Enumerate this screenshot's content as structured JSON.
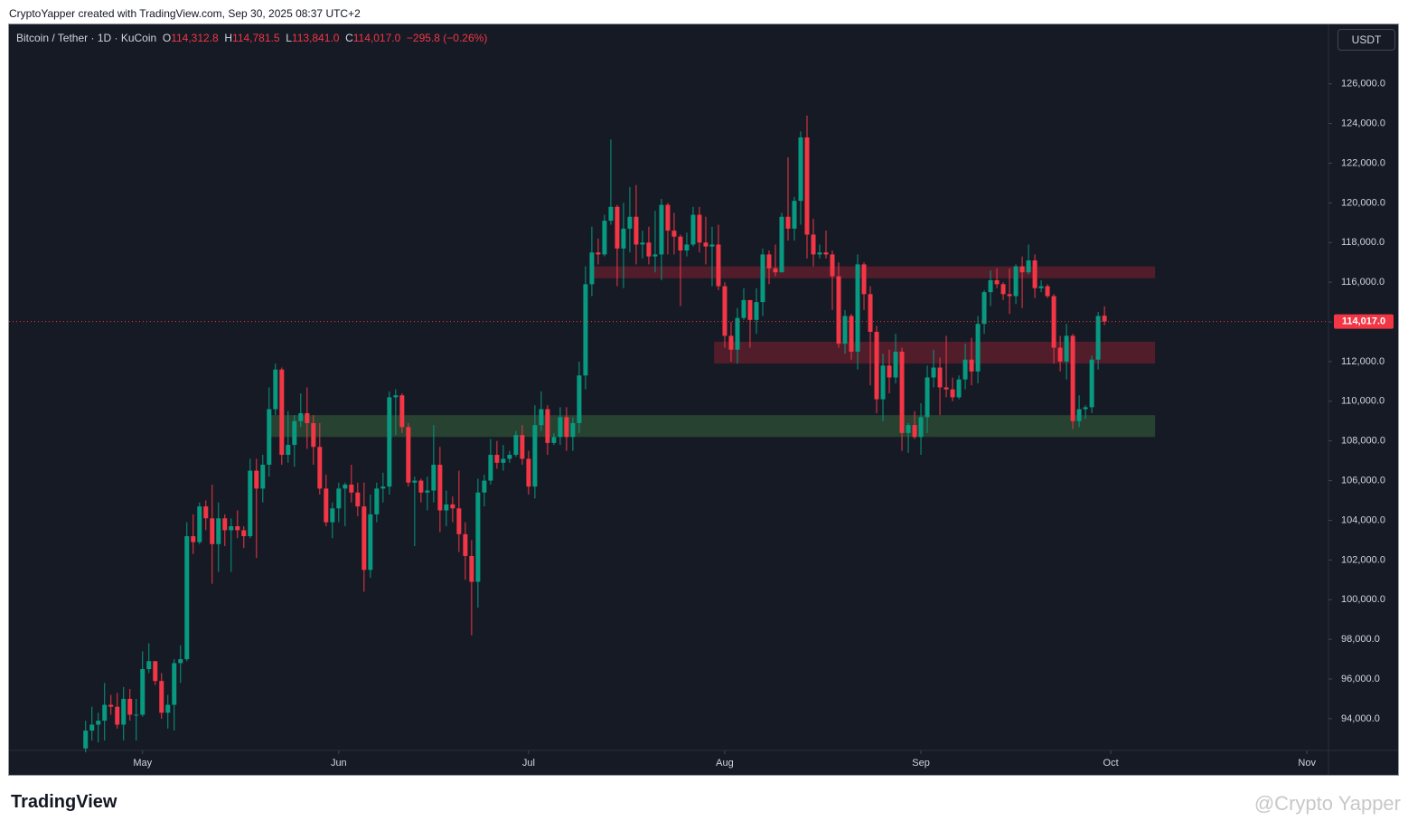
{
  "header": {
    "credit": "CryptoYapper created with TradingView.com, Sep 30, 2025 08:37 UTC+2"
  },
  "footer": {
    "logo": "TradingView",
    "watermark": "@Crypto Yapper"
  },
  "chart_data": {
    "type": "candlestick",
    "legend": {
      "symbol": "Bitcoin / Tether · 1D · KuCoin",
      "o_label": "O",
      "open": "114,312.8",
      "h_label": "H",
      "high": "114,781.5",
      "l_label": "L",
      "low": "113,841.0",
      "c_label": "C",
      "close": "114,017.0",
      "change": "−295.8 (−0.26%)"
    },
    "currency": "USDT",
    "up_color": "#089981",
    "down_color": "#f23645",
    "open": [
      92500,
      93400,
      93700,
      93900,
      94700,
      94600,
      93700,
      95000,
      94200,
      94200,
      96500,
      96900,
      95900,
      94300,
      94700,
      96800,
      97000,
      103200,
      102900,
      104700,
      104100,
      102800,
      104100,
      103500,
      103700,
      103500,
      103200,
      106500,
      105600,
      106800,
      109600,
      111600,
      107300,
      107800,
      109000,
      109400,
      108900,
      107700,
      105600,
      103900,
      104600,
      105600,
      105800,
      105400,
      104700,
      101500,
      104300,
      105600,
      105700,
      110200,
      110300,
      108700,
      105900,
      106000,
      105400,
      105500,
      106800,
      104500,
      104800,
      104600,
      103300,
      102200,
      100900,
      105400,
      106000,
      107300,
      106900,
      107100,
      107300,
      108300,
      107100,
      105700,
      108800,
      109600,
      107900,
      108200,
      109200,
      108200,
      108900,
      111300,
      115900,
      117500,
      117400,
      119100,
      119800,
      117700,
      118700,
      119300,
      117900,
      118000,
      117300,
      117400,
      119900,
      118600,
      118300,
      117600,
      117900,
      119400,
      118000,
      117800,
      117900,
      115800,
      113300,
      112600,
      114200,
      115100,
      114100,
      115000,
      117400,
      116700,
      116500,
      119300,
      118700,
      120100,
      123300,
      118400,
      117400,
      117500,
      117400,
      116300,
      112900,
      114300,
      112500,
      116900,
      115400,
      113500,
      110100,
      111800,
      111200,
      112500,
      108400,
      108800,
      108200,
      109200,
      111200,
      111700,
      110700,
      110600,
      110200,
      111100,
      112100,
      111500,
      113900,
      115500,
      116100,
      115900,
      115400,
      115300,
      116800,
      116500,
      117100,
      115700,
      115800,
      115300,
      112700,
      112000,
      113300,
      109000,
      109600,
      109700,
      112100,
      114312.8
    ],
    "high": [
      93900,
      94600,
      94300,
      95800,
      95200,
      95300,
      95600,
      95500,
      95000,
      97400,
      97800,
      96900,
      96300,
      95200,
      97000,
      97700,
      103900,
      104300,
      104900,
      105000,
      105800,
      104900,
      104300,
      104100,
      104500,
      103700,
      107100,
      107100,
      107300,
      110700,
      111900,
      111700,
      109500,
      109300,
      110400,
      110700,
      109300,
      108900,
      106300,
      104900,
      105900,
      105900,
      106800,
      105900,
      105900,
      105300,
      105900,
      106400,
      110500,
      110600,
      110400,
      108900,
      106200,
      106100,
      106200,
      108800,
      107700,
      105500,
      105200,
      106500,
      103900,
      103000,
      106100,
      106300,
      108100,
      108000,
      107800,
      107500,
      108500,
      108800,
      107500,
      109800,
      110500,
      109800,
      108400,
      109700,
      109700,
      109200,
      112000,
      116800,
      118800,
      118200,
      119400,
      123200,
      119900,
      120000,
      120800,
      120900,
      118600,
      118800,
      119600,
      120200,
      120000,
      119500,
      118400,
      118500,
      119800,
      119800,
      119300,
      118800,
      118900,
      116000,
      114000,
      114700,
      115700,
      115100,
      115700,
      117700,
      117600,
      117900,
      119500,
      122300,
      120300,
      123600,
      124400,
      119200,
      117900,
      118600,
      117600,
      117000,
      114600,
      114400,
      117400,
      117000,
      115800,
      113800,
      112400,
      112600,
      113400,
      112700,
      108900,
      109500,
      109900,
      111800,
      112600,
      112200,
      113300,
      111200,
      111300,
      112900,
      113200,
      114300,
      115600,
      116600,
      116700,
      116000,
      116700,
      116900,
      117300,
      117900,
      117400,
      116100,
      115900,
      115400,
      113300,
      113900,
      113400,
      110300,
      109800,
      112300,
      114500,
      114781.5
    ],
    "low": [
      92300,
      92900,
      92800,
      92900,
      94200,
      93500,
      92900,
      93900,
      92900,
      94100,
      96300,
      95700,
      94000,
      93500,
      93400,
      95800,
      96900,
      102300,
      102800,
      103500,
      100800,
      101400,
      102700,
      101400,
      103100,
      102600,
      103100,
      102100,
      104900,
      106200,
      109300,
      106800,
      106900,
      106700,
      108700,
      107600,
      106800,
      105300,
      103700,
      103100,
      103900,
      103700,
      104900,
      104200,
      100400,
      101100,
      103900,
      104900,
      105300,
      108300,
      108400,
      105700,
      102700,
      104900,
      104500,
      104900,
      103400,
      103700,
      103900,
      102400,
      101000,
      98200,
      99600,
      104700,
      105800,
      106600,
      106500,
      106900,
      107200,
      106800,
      105300,
      105100,
      108500,
      107300,
      107800,
      107800,
      107500,
      107500,
      108400,
      110600,
      115300,
      116900,
      117300,
      118900,
      115800,
      115700,
      117500,
      116900,
      117200,
      116900,
      116500,
      116100,
      117400,
      117400,
      114800,
      117300,
      117800,
      117500,
      116900,
      115800,
      115600,
      112700,
      112000,
      111900,
      114100,
      112700,
      113400,
      114300,
      115900,
      116300,
      116500,
      118100,
      118100,
      118900,
      117200,
      116800,
      117200,
      117200,
      114600,
      112700,
      112400,
      112100,
      111600,
      114600,
      110800,
      109400,
      109000,
      110400,
      110900,
      107500,
      107400,
      108100,
      107300,
      108400,
      110700,
      109300,
      110200,
      110000,
      110100,
      110600,
      110800,
      110900,
      113400,
      114800,
      115700,
      115100,
      114400,
      114900,
      114700,
      116400,
      115200,
      115500,
      115200,
      111900,
      111500,
      111100,
      108600,
      108700,
      109100,
      109400,
      111600,
      113841
    ],
    "close": [
      93400,
      93700,
      93900,
      94700,
      94600,
      93700,
      95000,
      94200,
      94200,
      96500,
      96900,
      95900,
      94300,
      94700,
      96800,
      97000,
      103200,
      102900,
      104700,
      104100,
      102800,
      104100,
      103500,
      103700,
      103500,
      103200,
      106500,
      105600,
      106800,
      109600,
      111600,
      107300,
      107800,
      109000,
      109400,
      108900,
      107700,
      105600,
      103900,
      104600,
      105600,
      105800,
      105400,
      104700,
      101500,
      104300,
      105600,
      105700,
      110200,
      110300,
      108700,
      105900,
      106000,
      105400,
      105500,
      106800,
      104500,
      104800,
      104600,
      103300,
      102200,
      100900,
      105400,
      106000,
      107300,
      106900,
      107100,
      107300,
      108300,
      107100,
      105700,
      108800,
      109600,
      107900,
      108200,
      109200,
      108200,
      108900,
      111300,
      115900,
      117500,
      117400,
      119100,
      119800,
      117700,
      118700,
      119300,
      117900,
      118000,
      117300,
      117400,
      119900,
      118600,
      118300,
      117600,
      117900,
      119400,
      118000,
      117800,
      117900,
      115800,
      113300,
      112600,
      114200,
      115100,
      114100,
      115000,
      117400,
      116700,
      116500,
      119300,
      118700,
      120100,
      123300,
      118400,
      117400,
      117500,
      117400,
      116300,
      112900,
      114300,
      112500,
      116900,
      115400,
      113500,
      110100,
      111800,
      111200,
      112500,
      108400,
      108800,
      108200,
      109200,
      111200,
      111700,
      110700,
      110600,
      110200,
      111100,
      112100,
      111500,
      113900,
      115500,
      116100,
      115900,
      115400,
      115300,
      116800,
      116500,
      117100,
      115700,
      115800,
      115300,
      112700,
      112000,
      113300,
      109000,
      109600,
      109700,
      112100,
      114300,
      114017
    ],
    "xlim": [
      -12.1,
      196.4
    ],
    "xticks": [
      {
        "value": 9,
        "label": "May"
      },
      {
        "value": 40,
        "label": "Jun"
      },
      {
        "value": 70,
        "label": "Jul"
      },
      {
        "value": 101,
        "label": "Aug"
      },
      {
        "value": 132,
        "label": "Sep"
      },
      {
        "value": 162,
        "label": "Oct"
      },
      {
        "value": 193,
        "label": "Nov"
      }
    ],
    "ylim": [
      92400,
      128950
    ],
    "yticks": [
      {
        "value": 94000,
        "label": "94,000.0"
      },
      {
        "value": 96000,
        "label": "96,000.0"
      },
      {
        "value": 98000,
        "label": "98,000.0"
      },
      {
        "value": 100000,
        "label": "100,000.0"
      },
      {
        "value": 102000,
        "label": "102,000.0"
      },
      {
        "value": 104000,
        "label": "104,000.0"
      },
      {
        "value": 106000,
        "label": "106,000.0"
      },
      {
        "value": 108000,
        "label": "108,000.0"
      },
      {
        "value": 110000,
        "label": "110,000.0"
      },
      {
        "value": 112000,
        "label": "112,000.0"
      },
      {
        "value": 114000,
        "label": "114,000.0"
      },
      {
        "value": 116000,
        "label": "116,000.0"
      },
      {
        "value": 118000,
        "label": "118,000.0"
      },
      {
        "value": 120000,
        "label": "120,000.0"
      },
      {
        "value": 122000,
        "label": "122,000.0"
      },
      {
        "value": 124000,
        "label": "124,000.0"
      },
      {
        "value": 126000,
        "label": "126,000.0"
      }
    ],
    "last_price": {
      "value": 114017,
      "label": "114,017.0"
    },
    "zones": [
      {
        "color": "#5c1e2b",
        "y": [
          116200,
          116800
        ],
        "x": [
          80,
          169
        ]
      },
      {
        "color": "#5c1e2b",
        "y": [
          111900,
          113000
        ],
        "x": [
          99.3,
          169
        ]
      },
      {
        "color": "#2a4a33",
        "y": [
          108200,
          109300
        ],
        "x": [
          29.3,
          169
        ]
      }
    ]
  }
}
